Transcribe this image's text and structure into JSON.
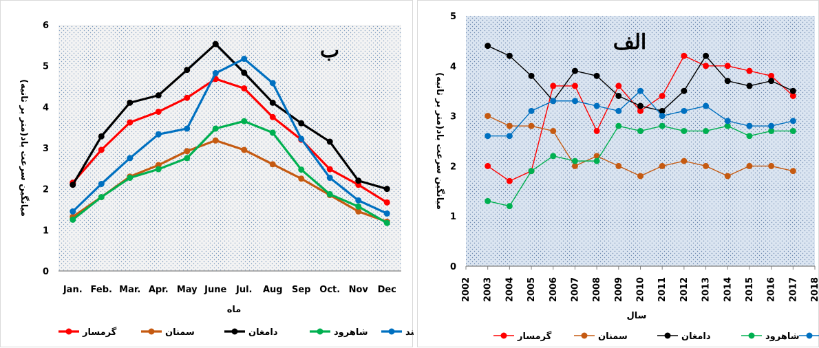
{
  "chart_data": [
    {
      "type": "line",
      "panel_label": "ب",
      "xlabel": "ماه",
      "ylabel": "میانگین سرعت باد(متر بر ثانیه)",
      "categories": [
        "Jan.",
        "Feb.",
        "Mar.",
        "Apr.",
        "May",
        "June",
        "Jul.",
        "Aug",
        "Sep",
        "Oct.",
        "Nov",
        "Dec"
      ],
      "ylim": [
        0,
        6
      ],
      "yticks": [
        0,
        1,
        2,
        3,
        4,
        5,
        6
      ],
      "grid": false,
      "legend_position": "bottom",
      "series": [
        {
          "name": "گرمسار",
          "color": "#ff0000",
          "values": [
            2.15,
            2.95,
            3.62,
            3.88,
            4.22,
            4.68,
            4.45,
            3.75,
            3.2,
            2.48,
            2.1,
            1.67
          ]
        },
        {
          "name": "سمنان",
          "color": "#c55a11",
          "values": [
            1.32,
            1.8,
            2.3,
            2.58,
            2.92,
            3.18,
            2.95,
            2.6,
            2.25,
            1.85,
            1.45,
            1.2
          ]
        },
        {
          "name": "دامغان",
          "color": "#000000",
          "values": [
            2.1,
            3.28,
            4.1,
            4.28,
            4.9,
            5.53,
            4.83,
            4.1,
            3.6,
            3.15,
            2.2,
            2.0
          ]
        },
        {
          "name": "شاهرود",
          "color": "#00b050",
          "values": [
            1.25,
            1.8,
            2.27,
            2.48,
            2.75,
            3.47,
            3.65,
            3.37,
            2.47,
            1.87,
            1.57,
            1.17
          ]
        },
        {
          "name": "بیارجمند",
          "color": "#0070c0",
          "values": [
            1.45,
            2.12,
            2.75,
            3.33,
            3.47,
            4.82,
            5.17,
            4.58,
            3.22,
            2.27,
            1.72,
            1.4
          ]
        }
      ]
    },
    {
      "type": "line",
      "panel_label": "الف",
      "xlabel": "سال",
      "ylabel": "میانگین سرعت باد(متر بر ثانیه)",
      "x": [
        2003,
        2004,
        2005,
        2006,
        2007,
        2008,
        2009,
        2010,
        2011,
        2012,
        2013,
        2014,
        2015,
        2016,
        2017
      ],
      "xlim": [
        2002,
        2018
      ],
      "xticks": [
        2002,
        2003,
        2004,
        2005,
        2006,
        2007,
        2008,
        2009,
        2010,
        2011,
        2012,
        2013,
        2014,
        2015,
        2016,
        2017,
        2018
      ],
      "ylim": [
        0,
        5
      ],
      "yticks": [
        0,
        1,
        2,
        3,
        4,
        5
      ],
      "grid": false,
      "legend_position": "bottom",
      "series": [
        {
          "name": "گرمسار",
          "color": "#ff0000",
          "values": [
            2.0,
            1.7,
            1.9,
            3.6,
            3.6,
            2.7,
            3.6,
            3.1,
            3.4,
            4.2,
            4.0,
            4.0,
            3.9,
            3.8,
            3.4
          ]
        },
        {
          "name": "سمنان",
          "color": "#c55a11",
          "values": [
            3.0,
            2.8,
            2.8,
            2.7,
            2.0,
            2.2,
            2.0,
            1.8,
            2.0,
            2.1,
            2.0,
            1.8,
            2.0,
            2.0,
            1.9
          ]
        },
        {
          "name": "دامغان",
          "color": "#000000",
          "values": [
            4.4,
            4.2,
            3.8,
            3.3,
            3.9,
            3.8,
            3.4,
            3.2,
            3.1,
            3.5,
            4.2,
            3.7,
            3.6,
            3.7,
            3.5
          ]
        },
        {
          "name": "شاهرود",
          "color": "#00b050",
          "values": [
            1.3,
            1.2,
            1.9,
            2.2,
            2.1,
            2.1,
            2.8,
            2.7,
            2.8,
            2.7,
            2.7,
            2.8,
            2.6,
            2.7,
            2.7
          ]
        },
        {
          "name": "بیارجمند",
          "color": "#0070c0",
          "values": [
            2.6,
            2.6,
            3.1,
            3.3,
            3.3,
            3.2,
            3.1,
            3.5,
            3.0,
            3.1,
            3.2,
            2.9,
            2.8,
            2.8,
            2.9
          ]
        }
      ]
    }
  ]
}
